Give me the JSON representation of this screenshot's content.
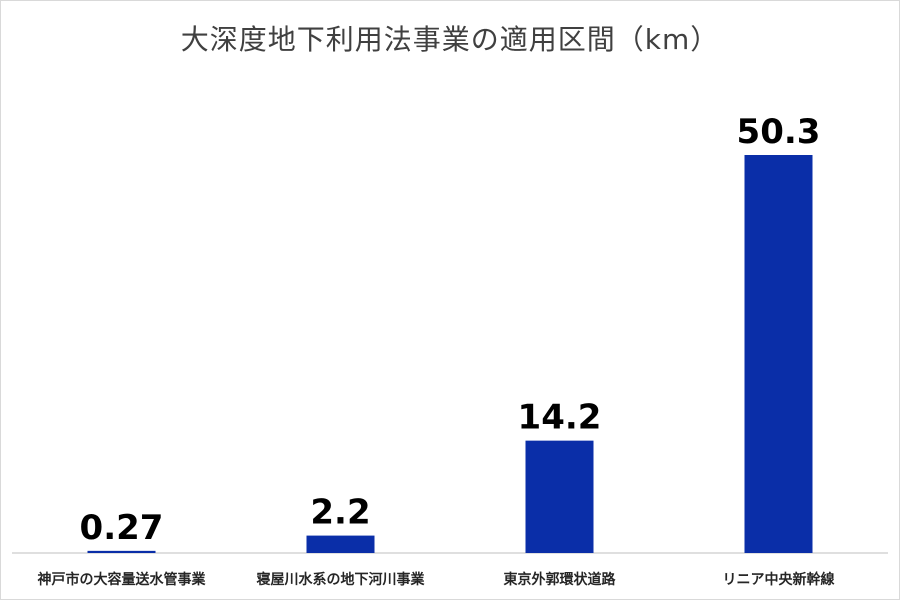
{
  "title": "大深度地下利用法事業の適用区間（km）",
  "colors": {
    "bar": "#0a2ea8",
    "axis": "#bfbfbf",
    "frame": "#d9d9d9"
  },
  "chart_data": {
    "type": "bar",
    "title": "大深度地下利用法事業の適用区間（km）",
    "categories": [
      "神戸市の大容量送水管事業",
      "寝屋川水系の地下河川事業",
      "東京外郭環状道路",
      "リニア中央新幹線"
    ],
    "values": [
      0.27,
      2.2,
      14.2,
      50.3
    ],
    "value_labels": [
      "0.27",
      "2.2",
      "14.2",
      "50.3"
    ],
    "xlabel": "",
    "ylabel": "",
    "ylim": [
      0,
      50.3
    ],
    "grid": false,
    "legend": "none"
  }
}
